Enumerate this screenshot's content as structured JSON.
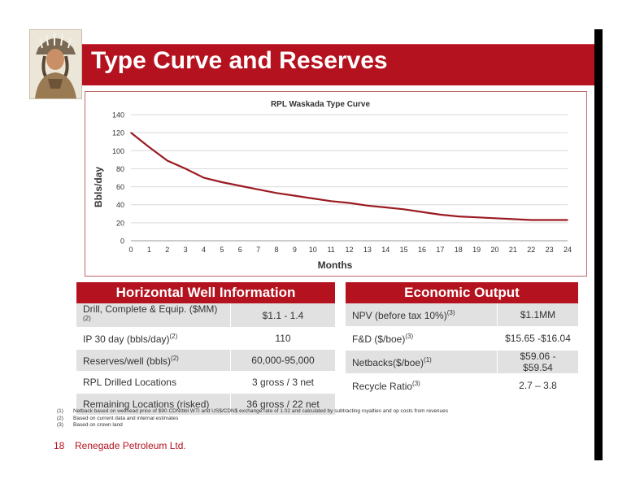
{
  "title": "Type Curve and Reserves",
  "chart_data": {
    "type": "line",
    "title": "RPL Waskada Type Curve",
    "xlabel": "Months",
    "ylabel": "Bbls/day",
    "x": [
      0,
      1,
      2,
      3,
      4,
      5,
      6,
      7,
      8,
      9,
      10,
      11,
      12,
      13,
      14,
      15,
      16,
      17,
      18,
      19,
      20,
      21,
      22,
      23,
      24
    ],
    "series": [
      {
        "values": [
          120,
          104,
          89,
          80,
          70,
          65,
          61,
          57,
          53,
          50,
          47,
          44,
          42,
          39,
          37,
          35,
          32,
          29,
          27,
          26,
          25,
          24,
          23,
          23,
          23
        ]
      }
    ],
    "xlim": [
      0,
      24
    ],
    "ylim": [
      0,
      140
    ],
    "yticks": [
      0,
      20,
      40,
      60,
      80,
      100,
      120,
      140
    ],
    "grid": true,
    "line_color": "#9b1b22"
  },
  "well_info": {
    "header": "Horizontal Well Information",
    "rows": [
      {
        "label": "Drill, Complete & Equip. ($MM)",
        "sup": "(2)",
        "value": "$1.1 - 1.4"
      },
      {
        "label": "IP 30 day (bbls/day)",
        "sup": "(2)",
        "value": "110"
      },
      {
        "label": "Reserves/well (bbls)",
        "sup": "(2)",
        "value": "60,000-95,000"
      },
      {
        "label": "RPL Drilled Locations",
        "sup": "",
        "value": "3 gross / 3 net"
      },
      {
        "label": "Remaining Locations (risked)",
        "sup": "",
        "value": "36 gross / 22 net"
      }
    ]
  },
  "economic": {
    "header": "Economic Output",
    "rows": [
      {
        "label": "NPV (before tax 10%)",
        "sup": "(3)",
        "value": "$1.1MM"
      },
      {
        "label": "F&D ($/boe)",
        "sup": "(3)",
        "value": "$15.65 -$16.04"
      },
      {
        "label": "Netbacks($/boe)",
        "sup": "(1)",
        "value": "$59.06 - $59.54"
      },
      {
        "label": "Recycle Ratio",
        "sup": "(3)",
        "value": "2.7 – 3.8"
      }
    ]
  },
  "footnotes": [
    {
      "num": "(1)",
      "text": "Netback based on wellhead price of $90 CDN/bbl WTI and US$/CDN$ exchange rate of 1.02 and calculated by subtracting royalties and op costs from revenues"
    },
    {
      "num": "(2)",
      "text": "Based on current data and internal estimates"
    },
    {
      "num": "(3)",
      "text": "Based on crown land"
    }
  ],
  "page_number": "18",
  "company": "Renegade Petroleum Ltd.",
  "colors": {
    "brand_red": "#b4121e",
    "row_shade": "#e1e1e1"
  }
}
